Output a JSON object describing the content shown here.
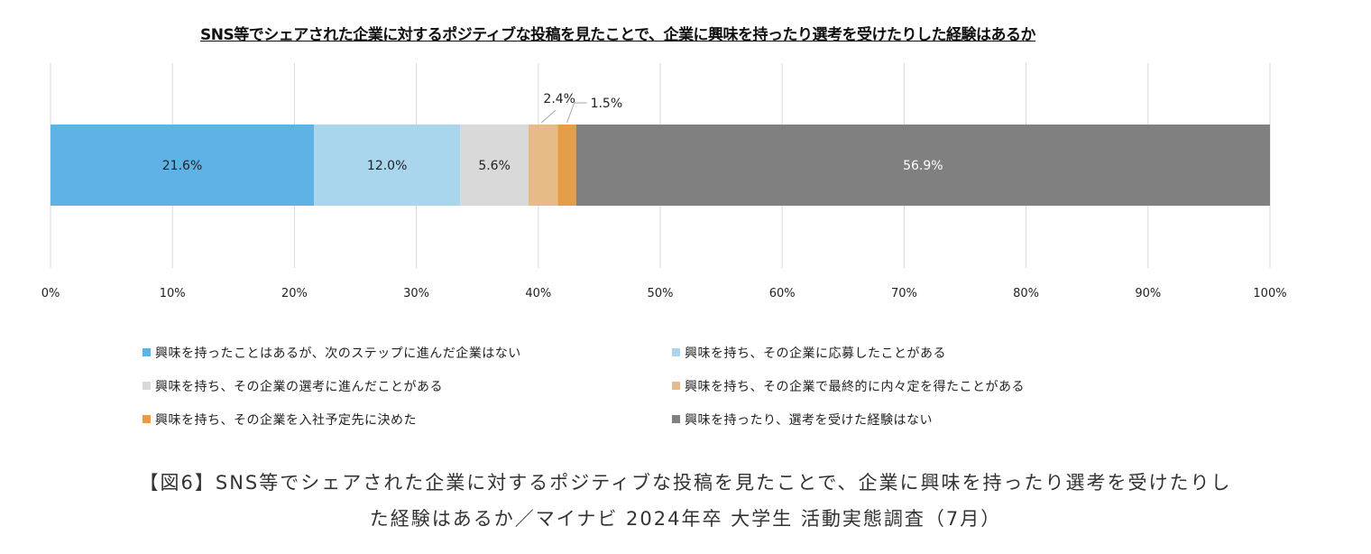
{
  "chart_data": {
    "type": "bar",
    "orientation": "horizontal-stacked-100",
    "title": "SNS等でシェアされた企業に対するポジティブな投稿を見たことで、企業に興味を持ったり選考を受けたりした経験はあるか",
    "xlim": [
      0,
      100
    ],
    "x_ticks": [
      "0%",
      "10%",
      "20%",
      "30%",
      "40%",
      "50%",
      "60%",
      "70%",
      "80%",
      "90%",
      "100%"
    ],
    "grid": "vertical",
    "legend_position": "bottom",
    "series": [
      {
        "name": "興味を持ったことはあるが、次のステップに進んだ企業はない",
        "value": 21.6,
        "label": "21.6%",
        "color": "#5fb2e6",
        "label_position": "inside"
      },
      {
        "name": "興味を持ち、その企業に応募したことがある",
        "value": 12.0,
        "label": "12.0%",
        "color": "#a9d6ec",
        "label_position": "inside"
      },
      {
        "name": "興味を持ち、その企業の選考に進んだことがある",
        "value": 5.6,
        "label": "5.6%",
        "color": "#d9d9d9",
        "label_position": "inside"
      },
      {
        "name": "興味を持ち、その企業で最終的に内々定を得たことがある",
        "value": 2.4,
        "label": "2.4%",
        "color": "#e6bb86",
        "label_position": "callout"
      },
      {
        "name": "興味を持ち、その企業を入社予定先に決めた",
        "value": 1.5,
        "label": "1.5%",
        "color": "#e59d4a",
        "label_position": "callout"
      },
      {
        "name": "興味を持ったり、選考を受けた経験はない",
        "value": 56.9,
        "label": "56.9%",
        "color": "#808080",
        "label_position": "inside"
      }
    ]
  },
  "caption": {
    "line1": "【図6】SNS等でシェアされた企業に対するポジティブな投稿を見たことで、企業に興味を持ったり選考を受けたりし",
    "line2": "た経験はあるか／マイナビ 2024年卒 大学生 活動実態調査（7月）"
  }
}
